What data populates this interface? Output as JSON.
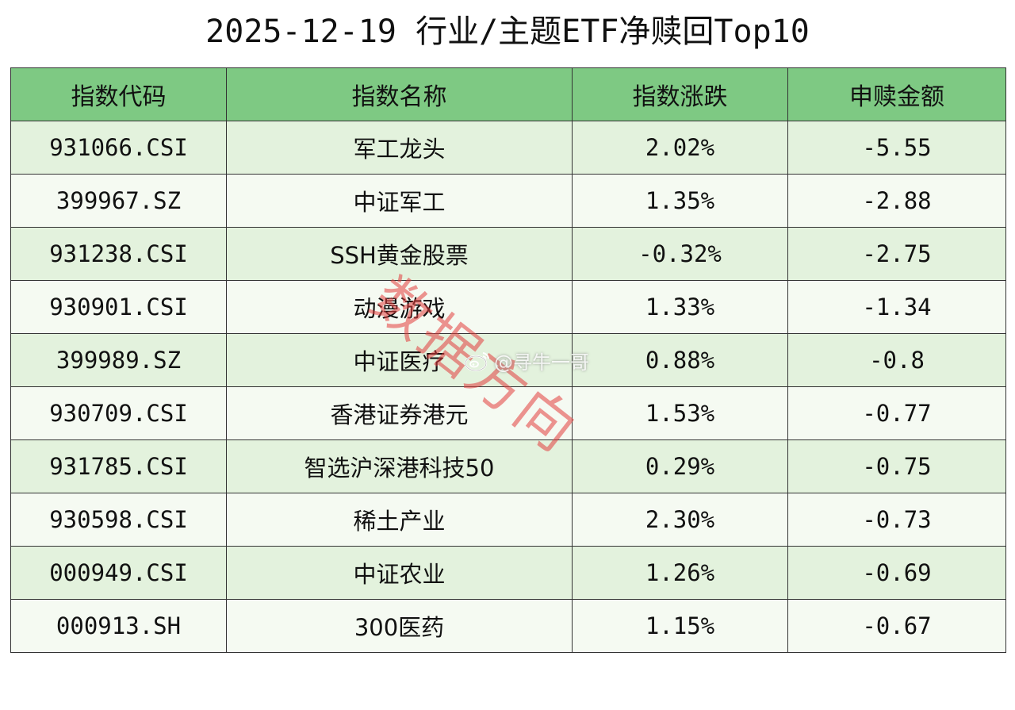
{
  "title": "2025-12-19 行业/主题ETF净赎回Top10",
  "table": {
    "headers": [
      "指数代码",
      "指数名称",
      "指数涨跌",
      "申赎金额"
    ],
    "rows": [
      [
        "931066.CSI",
        "军工龙头",
        "2.02%",
        "-5.55"
      ],
      [
        "399967.SZ",
        "中证军工",
        "1.35%",
        "-2.88"
      ],
      [
        "931238.CSI",
        "SSH黄金股票",
        "-0.32%",
        "-2.75"
      ],
      [
        "930901.CSI",
        "动漫游戏",
        "1.33%",
        "-1.34"
      ],
      [
        "399989.SZ",
        "中证医疗",
        "0.88%",
        "-0.8"
      ],
      [
        "930709.CSI",
        "香港证券港元",
        "1.53%",
        "-0.77"
      ],
      [
        "931785.CSI",
        "智选沪深港科技50",
        "0.29%",
        "-0.75"
      ],
      [
        "930598.CSI",
        "稀土产业",
        "2.30%",
        "-0.73"
      ],
      [
        "000949.CSI",
        "中证农业",
        "1.26%",
        "-0.69"
      ],
      [
        "000913.SH",
        "300医药",
        "1.15%",
        "-0.67"
      ]
    ]
  },
  "watermark": {
    "stamp_text": "数据方向",
    "handle_text": "@寻牛一哥",
    "stamp_color": "#e13c3c",
    "icon": "weibo-icon"
  },
  "colors": {
    "header_bg": "#7ec983",
    "row_odd_bg": "#e3f2dd",
    "row_even_bg": "#f5faf2",
    "border": "#333333"
  }
}
